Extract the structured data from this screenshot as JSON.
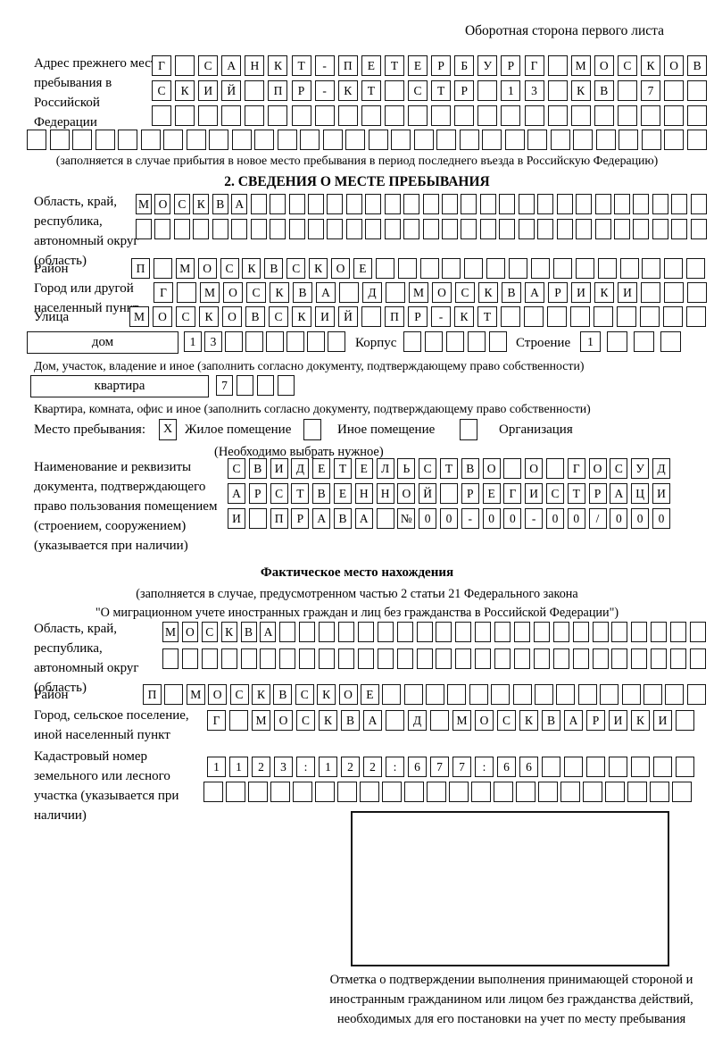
{
  "colors": {
    "ink": "#141414",
    "paper": "#ffffff"
  },
  "header": {
    "note": "Оборотная сторона первого листа"
  },
  "prev_address": {
    "label": "Адрес прежнего места пребывания в Российской Федерации",
    "row1": {
      "cells": "Г САНКТ-ПЕТЕРБУРГ МОСКОВ",
      "count": 24
    },
    "row2": {
      "cells": "СКИЙ ПР-КТ СТР 13 КВ 7",
      "count": 24
    },
    "row3": {
      "cells": "",
      "count": 24
    },
    "row4": {
      "cells": "",
      "count": 30
    },
    "note": "(заполняется в случае прибытия в новое место пребывания в период последнего въезда в Российскую Федерацию)"
  },
  "section2": {
    "title": "2. СВЕДЕНИЯ О МЕСТЕ ПРЕБЫВАНИЯ",
    "region": {
      "label": "Область, край, республика, автономный округ (область)",
      "row1": {
        "cells": "МОСКВА",
        "count": 30
      },
      "row2": {
        "cells": "",
        "count": 30
      }
    },
    "district": {
      "label": "Район",
      "row": {
        "cells": "П МОСКВСКОЕ",
        "count": 26
      }
    },
    "city": {
      "label": "Город или другой населенный пункт",
      "row": {
        "cells": "Г МОСКВА Д МОСКВАРИКИ",
        "count": 24
      }
    },
    "street": {
      "label": "Улица",
      "row": {
        "cells": "МОСКОВСКИЙ ПР-КТ",
        "count": 25
      }
    },
    "house": {
      "box_label": "дом",
      "row": {
        "cells": "13",
        "count": 8
      },
      "korpus_label": "Корпус",
      "korpus_row": {
        "cells": "",
        "count": 5
      },
      "stroenie_label": "Строение",
      "stroenie_row": {
        "cells": "1",
        "count": 4
      },
      "note": "Дом, участок, владение и иное (заполнить согласно документу, подтверждающему право собственности)"
    },
    "apartment": {
      "box_label": "квартира",
      "row": {
        "cells": "7",
        "count": 4
      },
      "note": "Квартира, комната, офис и иное (заполнить согласно документу, подтверждающему право собственности)"
    },
    "stay_type": {
      "label": "Место пребывания:",
      "mark": "X",
      "option1": "Жилое помещение",
      "option2": "Иное помещение",
      "option3": "Организация",
      "note": "(Необходимо выбрать нужное)"
    },
    "document": {
      "label": "Наименование и реквизиты документа, подтверждающего право пользования помещением (строением, сооружением) (указывается при наличии)",
      "row1": {
        "cells": "СВИДЕТЕЛЬСТВО О ГОСУД",
        "count": 21
      },
      "row2": {
        "cells": "АРСТВЕННОЙ РЕГИСТРАЦИ",
        "count": 21
      },
      "row3": {
        "cells": "И ПРАВА №00-00-00/000",
        "count": 21
      }
    }
  },
  "actual_location": {
    "title": "Фактическое место нахождения",
    "note_line1": "(заполняется в случае, предусмотренном частью 2 статьи 21 Федерального закона",
    "note_line2": "\"О миграционном учете иностранных граждан и лиц без гражданства в Российской Федерации\")",
    "region": {
      "label": "Область, край, республика, автономный округ (область)",
      "row1": {
        "cells": "МОСКВА",
        "count": 28
      },
      "row2": {
        "cells": "",
        "count": 28
      }
    },
    "district": {
      "label": "Район",
      "row": {
        "cells": "П МОСКВСКОЕ",
        "count": 26
      }
    },
    "city": {
      "label": "Город, сельское поселение, иной населенный пункт",
      "row": {
        "cells": "Г МОСКВА Д МОСКВАРИКИ",
        "count": 22
      }
    },
    "cadastral": {
      "label": "Кадастровый номер земельного или лесного участка (указывается при наличии)",
      "row1": {
        "cells": "1123:122:677:66",
        "count": 22
      },
      "row2": {
        "cells": "",
        "count": 22
      }
    },
    "mark_note": "Отметка о подтверждении выполнения принимающей стороной и иностранным гражданином или лицом без гражданства действий, необходимых для его постановки на учет по месту пребывания"
  }
}
